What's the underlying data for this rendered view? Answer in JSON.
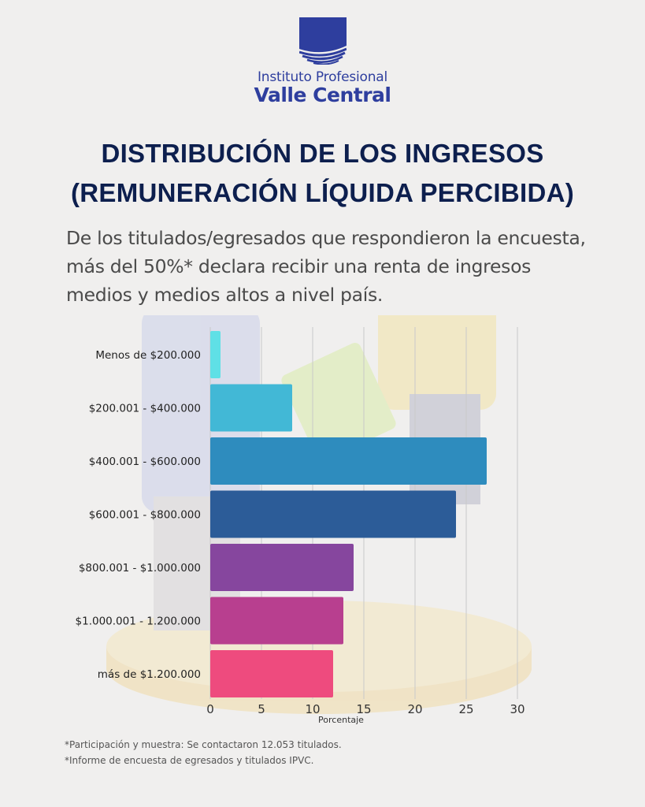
{
  "brand": {
    "line1": "Instituto Profesional",
    "line2": "Valle Central"
  },
  "title": {
    "line1": "DISTRIBUCIÓN DE LOS INGRESOS",
    "line2": "(REMUNERACIÓN LÍQUIDA PERCIBIDA)"
  },
  "intro": "De los titulados/egresados que respondieron la encuesta, más del 50%* declara recibir una renta de ingresos medios y medios altos a nivel país.",
  "chart_data": {
    "type": "bar",
    "orientation": "horizontal",
    "categories": [
      "Menos de $200.000",
      "$200.001 - $400.000",
      "$400.001 - $600.000",
      "$600.001 - $800.000",
      "$800.001 - $1.000.000",
      "$1.000.001 - 1.200.000",
      "más de $1.200.000"
    ],
    "values": [
      1,
      8,
      27,
      24,
      14,
      13,
      12
    ],
    "colors": [
      "#5fe0e6",
      "#42b8d6",
      "#2e8cbe",
      "#2c5c98",
      "#86469e",
      "#b83f8f",
      "#ee4b7e"
    ],
    "xlabel": "Porcentaje",
    "xlim": [
      0,
      30
    ],
    "xticks": [
      0,
      5,
      10,
      15,
      20,
      25,
      30
    ],
    "grid": true
  },
  "footnotes": [
    "*Participación y muestra: Se contactaron 12.053 titulados.",
    "*Informe de encuesta de egresados y titulados IPVC."
  ]
}
